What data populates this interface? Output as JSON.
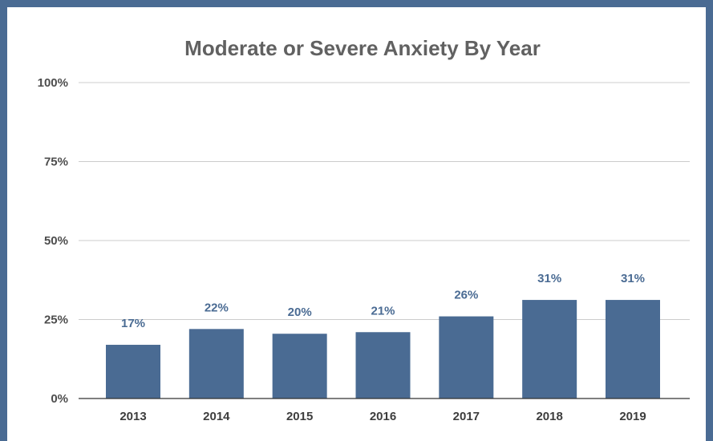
{
  "chart_data": {
    "type": "bar",
    "title": "Moderate or Severe Anxiety By Year",
    "xlabel": "",
    "ylabel": "",
    "categories": [
      "2013",
      "2014",
      "2015",
      "2016",
      "2017",
      "2018",
      "2019"
    ],
    "values": [
      17,
      22,
      20.5,
      21,
      26,
      31.2,
      31.2
    ],
    "data_labels": [
      "17%",
      "22%",
      "20%",
      "21%",
      "26%",
      "31%",
      "31%"
    ],
    "ylim": [
      0,
      100
    ],
    "yticks": [
      0,
      25,
      50,
      75,
      100
    ],
    "ytick_labels": [
      "0%",
      "25%",
      "50%",
      "75%",
      "100%"
    ],
    "grid": true,
    "legend": "none",
    "colors": {
      "bar": "#4a6b93",
      "label": "#4a6b93",
      "frame": "#4a6b93"
    }
  }
}
